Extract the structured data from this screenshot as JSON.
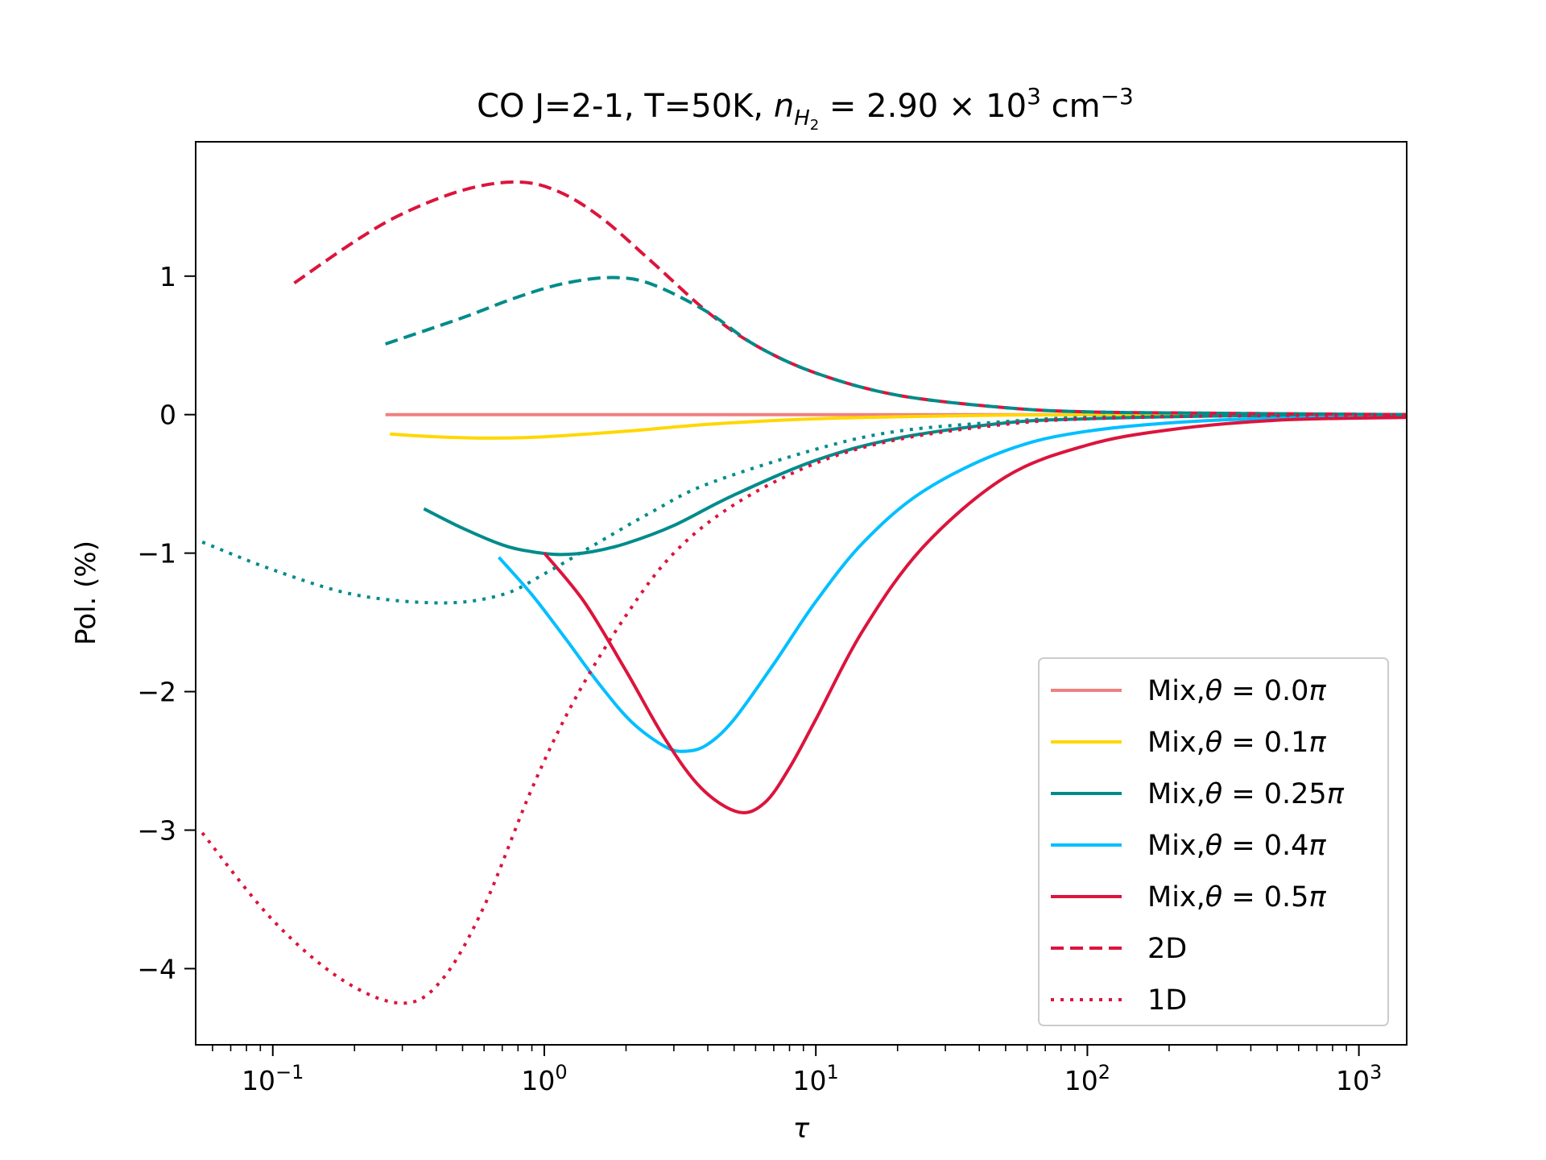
{
  "chart_data": {
    "type": "line",
    "title": {
      "prefix": "CO J=2-1, T=50K, ",
      "n": "n",
      "n_sub": "H",
      "n_subsub": "2",
      "eq": " = 2.90 × 10",
      "exp": "3",
      "unit": " cm",
      "unit_exp": "−3"
    },
    "xlabel": "τ",
    "ylabel": "Pol. (%)",
    "xscale": "log",
    "xlim": [
      0.052,
      1500
    ],
    "ylim": [
      -4.55,
      1.97
    ],
    "xticks": [
      {
        "value": 0.1,
        "base": "10",
        "exp": "−1"
      },
      {
        "value": 1,
        "base": "10",
        "exp": "0"
      },
      {
        "value": 10,
        "base": "10",
        "exp": "1"
      },
      {
        "value": 100,
        "base": "10",
        "exp": "2"
      },
      {
        "value": 1000,
        "base": "10",
        "exp": "3"
      }
    ],
    "yticks": [
      {
        "value": 1,
        "label": "1"
      },
      {
        "value": 0,
        "label": "0"
      },
      {
        "value": -1,
        "label": "−1"
      },
      {
        "value": -2,
        "label": "−2"
      },
      {
        "value": -3,
        "label": "−3"
      },
      {
        "value": -4,
        "label": "−4"
      }
    ],
    "legend_position": "lower-right",
    "legend": [
      {
        "prefix": "Mix,",
        "theta": "θ",
        "rest": " = 0.0",
        "pi": "π",
        "color": "#f08080",
        "dash": "solid"
      },
      {
        "prefix": "Mix,",
        "theta": "θ",
        "rest": " = 0.1",
        "pi": "π",
        "color": "#ffd700",
        "dash": "solid"
      },
      {
        "prefix": "Mix,",
        "theta": "θ",
        "rest": " = 0.25",
        "pi": "π",
        "color": "#008b8b",
        "dash": "solid"
      },
      {
        "prefix": "Mix,",
        "theta": "θ",
        "rest": " = 0.4",
        "pi": "π",
        "color": "#00bfff",
        "dash": "solid"
      },
      {
        "prefix": "Mix,",
        "theta": "θ",
        "rest": " = 0.5",
        "pi": "π",
        "color": "#dc143c",
        "dash": "solid"
      },
      {
        "prefix": "2D",
        "theta": "",
        "rest": "",
        "pi": "",
        "color": "#dc143c",
        "dash": "dashed"
      },
      {
        "prefix": "1D",
        "theta": "",
        "rest": "",
        "pi": "",
        "color": "#dc143c",
        "dash": "dotted"
      }
    ],
    "series": [
      {
        "color": "#f08080",
        "dash": "solid",
        "points": [
          [
            0.26,
            0
          ],
          [
            1,
            0
          ],
          [
            10,
            0
          ],
          [
            100,
            0
          ],
          [
            1500,
            0
          ]
        ]
      },
      {
        "color": "#ffd700",
        "dash": "solid",
        "points": [
          [
            0.27,
            -0.14
          ],
          [
            0.4,
            -0.16
          ],
          [
            0.65,
            -0.17
          ],
          [
            1,
            -0.16
          ],
          [
            2,
            -0.12
          ],
          [
            4,
            -0.07
          ],
          [
            10,
            -0.03
          ],
          [
            30,
            -0.01
          ],
          [
            100,
            0
          ],
          [
            1500,
            0
          ]
        ]
      },
      {
        "color": "#008b8b",
        "dash": "solid",
        "points": [
          [
            0.36,
            -0.68
          ],
          [
            0.5,
            -0.82
          ],
          [
            0.7,
            -0.94
          ],
          [
            0.9,
            -0.99
          ],
          [
            1.15,
            -1.01
          ],
          [
            1.5,
            -0.99
          ],
          [
            2,
            -0.93
          ],
          [
            3,
            -0.8
          ],
          [
            5,
            -0.58
          ],
          [
            10,
            -0.33
          ],
          [
            20,
            -0.17
          ],
          [
            50,
            -0.06
          ],
          [
            100,
            -0.03
          ],
          [
            300,
            -0.01
          ],
          [
            1500,
            0
          ]
        ]
      },
      {
        "color": "#00bfff",
        "dash": "solid",
        "points": [
          [
            0.68,
            -1.03
          ],
          [
            0.9,
            -1.3
          ],
          [
            1.2,
            -1.62
          ],
          [
            1.6,
            -1.95
          ],
          [
            2.1,
            -2.22
          ],
          [
            2.8,
            -2.4
          ],
          [
            3.35,
            -2.43
          ],
          [
            4,
            -2.38
          ],
          [
            5,
            -2.2
          ],
          [
            7,
            -1.8
          ],
          [
            10,
            -1.35
          ],
          [
            15,
            -0.92
          ],
          [
            25,
            -0.55
          ],
          [
            50,
            -0.26
          ],
          [
            100,
            -0.12
          ],
          [
            300,
            -0.04
          ],
          [
            1500,
            -0.01
          ]
        ]
      },
      {
        "color": "#dc143c",
        "dash": "solid",
        "points": [
          [
            1,
            -1.0
          ],
          [
            1.4,
            -1.35
          ],
          [
            2,
            -1.85
          ],
          [
            2.8,
            -2.35
          ],
          [
            3.8,
            -2.7
          ],
          [
            5.2,
            -2.87
          ],
          [
            6.5,
            -2.8
          ],
          [
            8,
            -2.55
          ],
          [
            10,
            -2.2
          ],
          [
            15,
            -1.55
          ],
          [
            25,
            -0.95
          ],
          [
            50,
            -0.45
          ],
          [
            100,
            -0.22
          ],
          [
            200,
            -0.11
          ],
          [
            500,
            -0.04
          ],
          [
            1500,
            -0.02
          ]
        ]
      },
      {
        "color": "#dc143c",
        "dash": "dashed",
        "points": [
          [
            0.12,
            0.95
          ],
          [
            0.2,
            1.25
          ],
          [
            0.3,
            1.45
          ],
          [
            0.5,
            1.62
          ],
          [
            0.78,
            1.68
          ],
          [
            1.1,
            1.62
          ],
          [
            1.6,
            1.43
          ],
          [
            2.5,
            1.1
          ],
          [
            4,
            0.74
          ],
          [
            6,
            0.5
          ],
          [
            10,
            0.3
          ],
          [
            20,
            0.14
          ],
          [
            50,
            0.05
          ],
          [
            100,
            0.02
          ],
          [
            300,
            0.01
          ],
          [
            1500,
            0
          ]
        ]
      },
      {
        "color": "#008b8b",
        "dash": "dashed",
        "points": [
          [
            0.26,
            0.51
          ],
          [
            0.5,
            0.7
          ],
          [
            0.8,
            0.85
          ],
          [
            1.2,
            0.95
          ],
          [
            1.8,
            0.99
          ],
          [
            2.5,
            0.94
          ],
          [
            4,
            0.74
          ],
          [
            6,
            0.5
          ],
          [
            10,
            0.3
          ],
          [
            20,
            0.14
          ],
          [
            50,
            0.05
          ],
          [
            100,
            0.02
          ],
          [
            300,
            0.01
          ],
          [
            1500,
            0
          ]
        ]
      },
      {
        "color": "#008b8b",
        "dash": "dotted",
        "points": [
          [
            0.055,
            -0.92
          ],
          [
            0.1,
            -1.12
          ],
          [
            0.2,
            -1.3
          ],
          [
            0.42,
            -1.36
          ],
          [
            0.7,
            -1.3
          ],
          [
            1,
            -1.15
          ],
          [
            1.5,
            -0.95
          ],
          [
            2.5,
            -0.7
          ],
          [
            4,
            -0.5
          ],
          [
            10,
            -0.25
          ],
          [
            20,
            -0.12
          ],
          [
            50,
            -0.05
          ],
          [
            100,
            -0.02
          ],
          [
            300,
            -0.01
          ],
          [
            1500,
            0
          ]
        ]
      },
      {
        "color": "#dc143c",
        "dash": "dotted",
        "points": [
          [
            0.055,
            -3.02
          ],
          [
            0.1,
            -3.65
          ],
          [
            0.18,
            -4.08
          ],
          [
            0.3,
            -4.25
          ],
          [
            0.42,
            -4.08
          ],
          [
            0.6,
            -3.55
          ],
          [
            0.9,
            -2.7
          ],
          [
            1.3,
            -2.05
          ],
          [
            2,
            -1.45
          ],
          [
            3,
            -1.0
          ],
          [
            5,
            -0.65
          ],
          [
            10,
            -0.35
          ],
          [
            20,
            -0.18
          ],
          [
            50,
            -0.07
          ],
          [
            100,
            -0.03
          ],
          [
            300,
            -0.01
          ],
          [
            1500,
            0
          ]
        ]
      }
    ]
  }
}
